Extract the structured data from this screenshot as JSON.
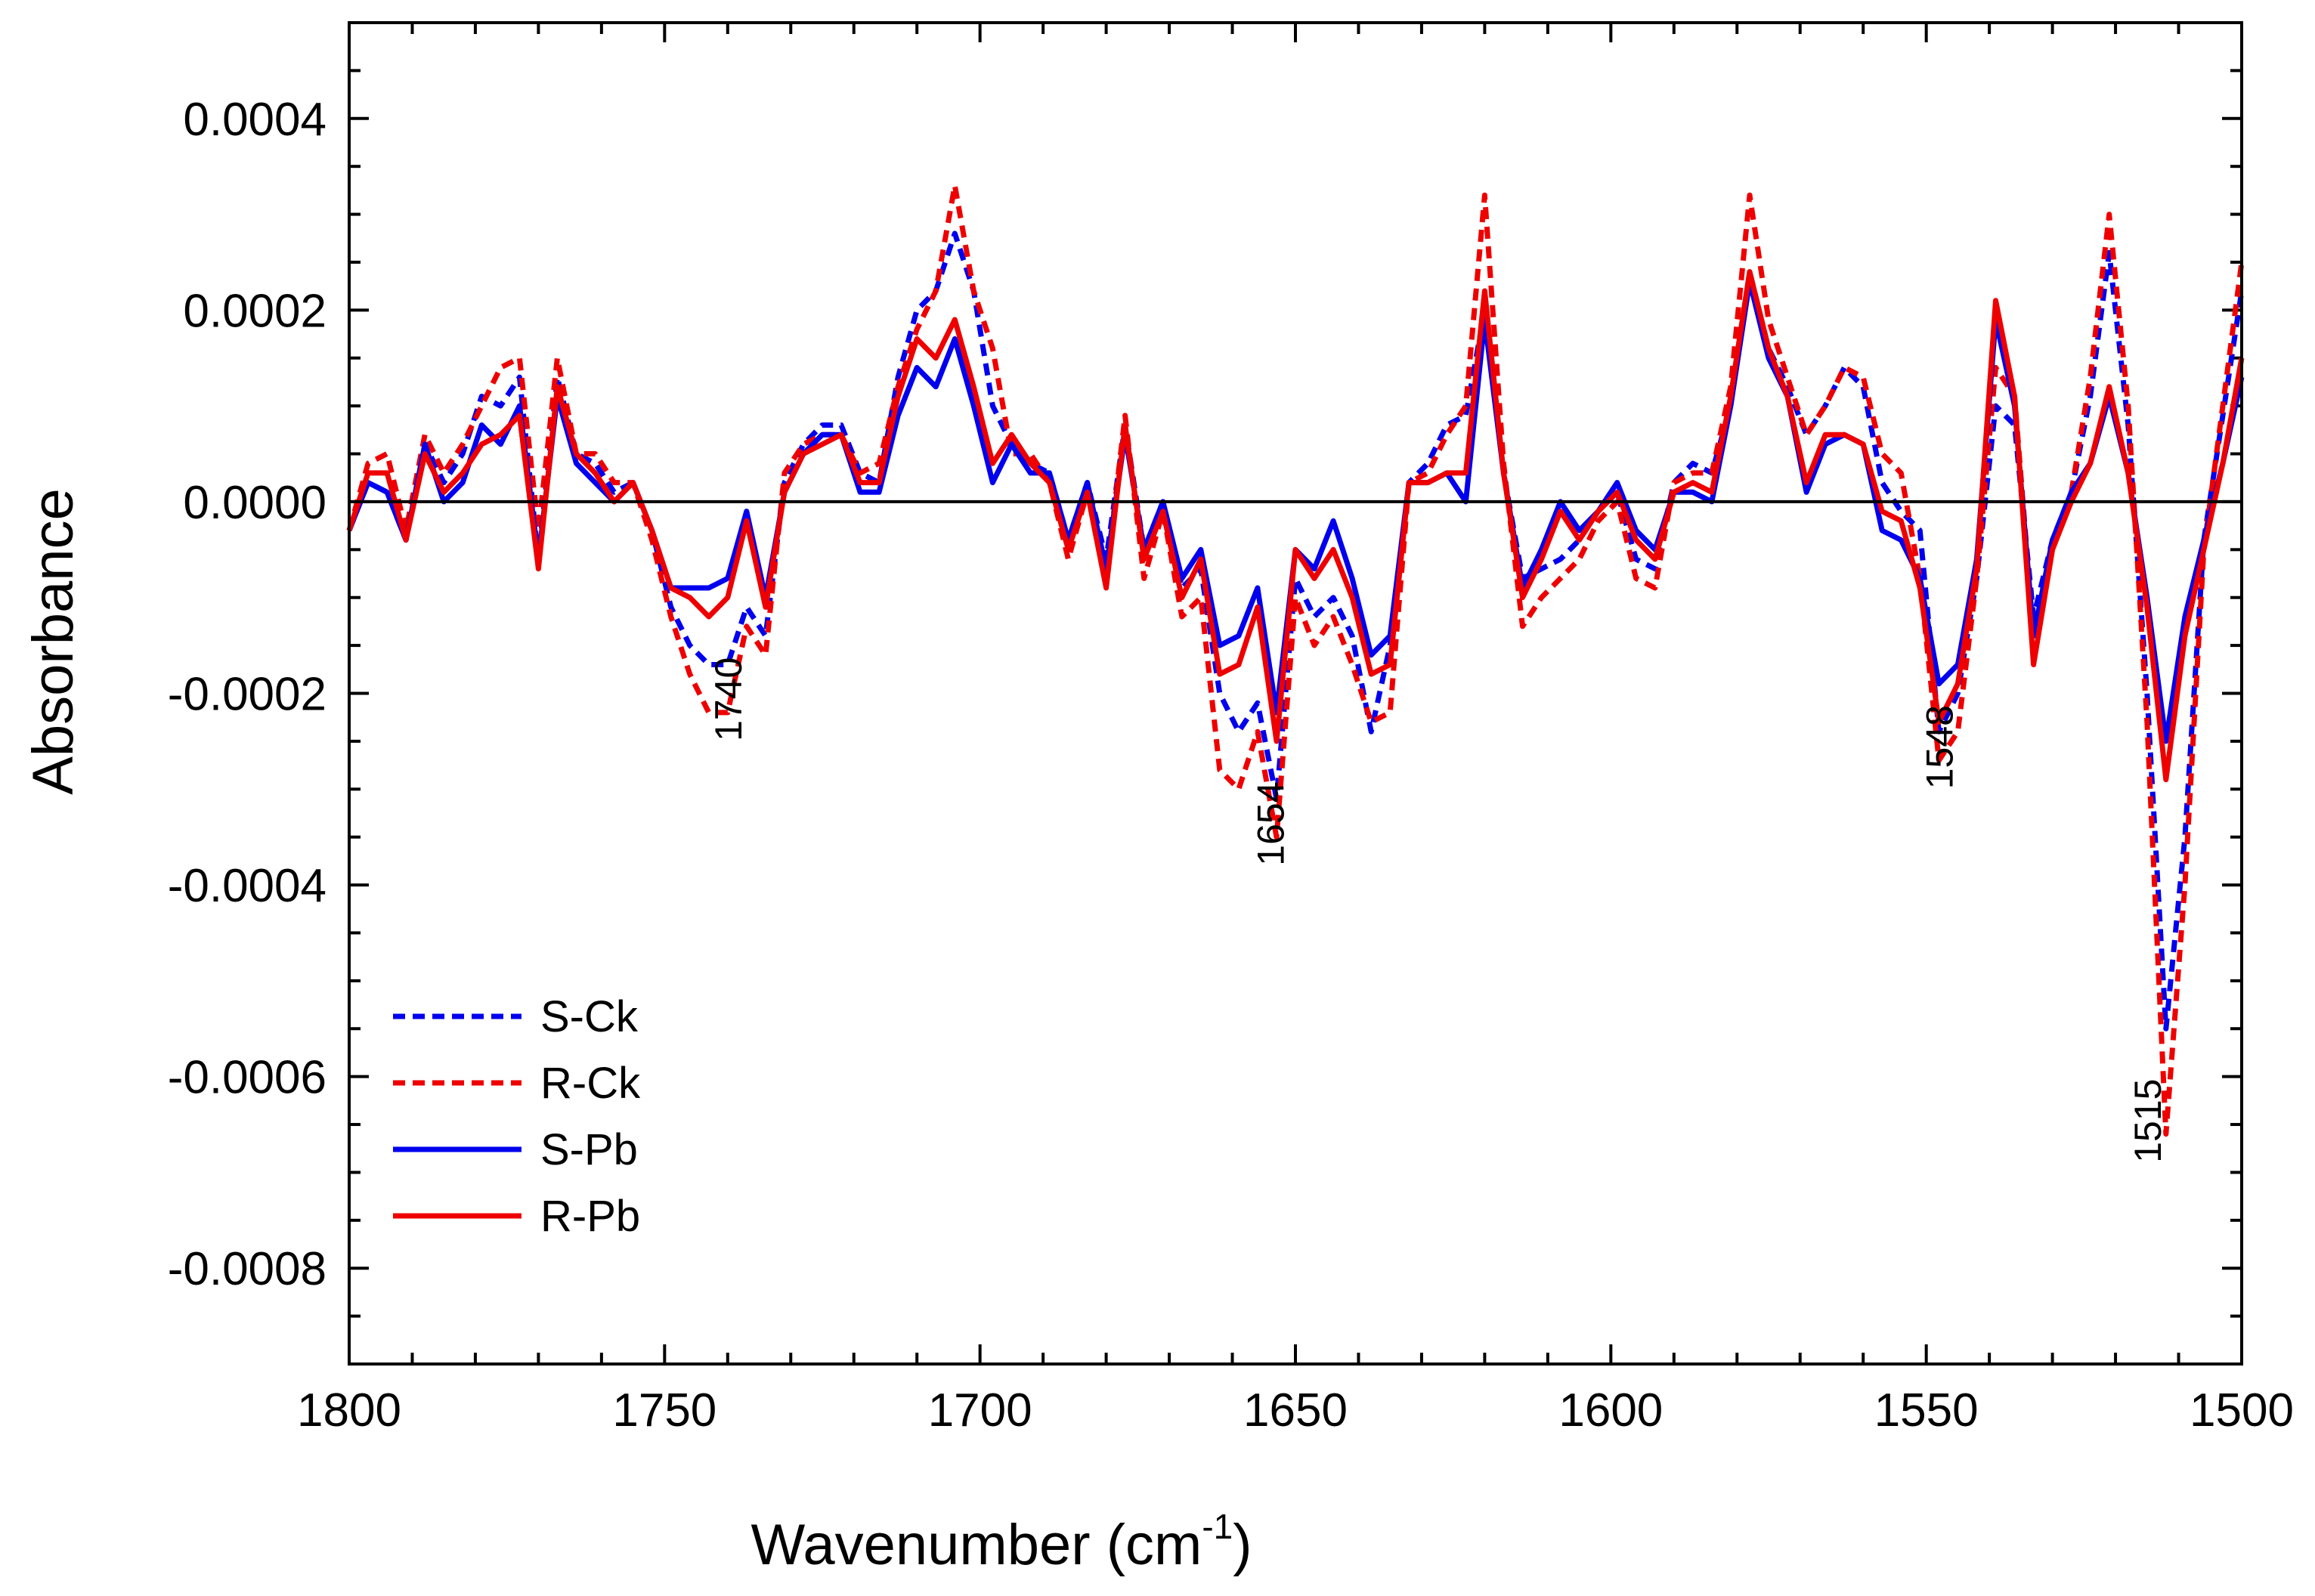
{
  "chart_data": {
    "type": "line",
    "title": "",
    "xlabel": "Wavenumber (cm",
    "xlabel_sup": "-1",
    "xlabel_close": ")",
    "ylabel": "Absorbance",
    "xlim": [
      1800,
      1500
    ],
    "ylim": [
      -0.0009,
      0.0005
    ],
    "x_ticks": [
      1800,
      1750,
      1700,
      1650,
      1600,
      1550,
      1500
    ],
    "x_tick_labels": [
      "1800",
      "1750",
      "1700",
      "1650",
      "1600",
      "1550",
      "1500"
    ],
    "y_ticks": [
      0.0004,
      0.0002,
      0.0,
      -0.0002,
      -0.0004,
      -0.0006,
      -0.0008
    ],
    "y_tick_labels": [
      "0.0004",
      "0.0002",
      "0.0000",
      "-0.0002",
      "-0.0004",
      "-0.0006",
      "-0.0008"
    ],
    "grid": false,
    "legend_position": "bottom-left",
    "colors": {
      "blue": "#0000ee",
      "red": "#ee0000"
    },
    "x": [
      1800,
      1797,
      1794,
      1791,
      1788,
      1785,
      1782,
      1779,
      1776,
      1773,
      1770,
      1767,
      1764,
      1761,
      1758,
      1755,
      1752,
      1749,
      1746,
      1743,
      1740,
      1737,
      1734,
      1731,
      1728,
      1725,
      1722,
      1719,
      1716,
      1713,
      1710,
      1707,
      1704,
      1701,
      1698,
      1695,
      1692,
      1689,
      1686,
      1683,
      1680,
      1677,
      1674,
      1671,
      1668,
      1665,
      1662,
      1659,
      1656,
      1653,
      1650,
      1647,
      1644,
      1641,
      1638,
      1635,
      1632,
      1629,
      1626,
      1623,
      1620,
      1617,
      1614,
      1611,
      1608,
      1605,
      1602,
      1599,
      1596,
      1593,
      1590,
      1587,
      1584,
      1581,
      1578,
      1575,
      1572,
      1569,
      1566,
      1563,
      1560,
      1557,
      1554,
      1551,
      1548,
      1545,
      1542,
      1539,
      1536,
      1533,
      1530,
      1527,
      1524,
      1521,
      1518,
      1515,
      1512,
      1509,
      1506,
      1503,
      1500
    ],
    "series": [
      {
        "name": "S-Ck",
        "style": "dashed",
        "color": "#0000ee",
        "values": [
          -3e-05,
          2e-05,
          1e-05,
          -4e-05,
          6e-05,
          2e-05,
          5e-05,
          0.00011,
          0.0001,
          0.00013,
          -6e-05,
          0.00013,
          5e-05,
          4e-05,
          1e-05,
          2e-05,
          -3e-05,
          -0.00011,
          -0.00015,
          -0.00017,
          -0.00017,
          -0.00011,
          -0.00014,
          2e-05,
          6e-05,
          8e-05,
          8e-05,
          3e-05,
          2e-05,
          0.00013,
          0.0002,
          0.00022,
          0.00028,
          0.00022,
          0.0001,
          6e-05,
          4e-05,
          3e-05,
          -4e-05,
          2e-05,
          -6e-05,
          8e-05,
          -5e-05,
          0.0,
          -9e-05,
          -7e-05,
          -0.0002,
          -0.00024,
          -0.00021,
          -0.00031,
          -8e-05,
          -0.00012,
          -0.0001,
          -0.00014,
          -0.00024,
          -0.00015,
          2e-05,
          4e-05,
          8e-05,
          9e-05,
          0.0002,
          3e-05,
          -8e-05,
          -7e-05,
          -6e-05,
          -4e-05,
          -1e-05,
          1e-05,
          -6e-05,
          -7e-05,
          2e-05,
          4e-05,
          3e-05,
          0.0001,
          0.00024,
          0.00016,
          0.00012,
          7e-05,
          0.0001,
          0.00014,
          0.00012,
          2e-05,
          -1e-05,
          -3e-05,
          -0.00024,
          -0.0002,
          -8e-05,
          0.0001,
          8e-05,
          -0.00012,
          -4e-05,
          1e-05,
          0.00011,
          0.00026,
          8e-05,
          -0.0002,
          -0.00055,
          -0.00035,
          -4e-05,
          9e-05,
          0.00022
        ]
      },
      {
        "name": "R-Ck",
        "style": "dashed",
        "color": "#ee0000",
        "values": [
          -3e-05,
          4e-05,
          5e-05,
          -3e-05,
          7e-05,
          3e-05,
          6e-05,
          0.0001,
          0.00014,
          0.00015,
          -3e-05,
          0.00015,
          5e-05,
          5e-05,
          2e-05,
          2e-05,
          -4e-05,
          -0.00012,
          -0.00018,
          -0.00022,
          -0.00022,
          -0.00013,
          -0.00016,
          3e-05,
          6e-05,
          7e-05,
          7e-05,
          3e-05,
          4e-05,
          0.00012,
          0.00018,
          0.00022,
          0.00033,
          0.00022,
          0.00016,
          5e-05,
          5e-05,
          2e-05,
          -6e-05,
          1e-05,
          -8e-05,
          9e-05,
          -8e-05,
          -1e-05,
          -0.00012,
          -0.0001,
          -0.00028,
          -0.0003,
          -0.00024,
          -0.00035,
          -0.0001,
          -0.00015,
          -0.00012,
          -0.00017,
          -0.00023,
          -0.00022,
          2e-05,
          3e-05,
          7e-05,
          0.0001,
          0.00032,
          4e-05,
          -0.00013,
          -0.0001,
          -8e-05,
          -6e-05,
          -2e-05,
          0.0,
          -8e-05,
          -9e-05,
          2e-05,
          3e-05,
          3e-05,
          0.00012,
          0.00032,
          0.00019,
          0.00013,
          7e-05,
          0.0001,
          0.00014,
          0.00013,
          5e-05,
          3e-05,
          -8e-05,
          -0.00027,
          -0.00024,
          -8e-05,
          0.00014,
          0.00011,
          -0.00014,
          -5e-05,
          1e-05,
          0.00013,
          0.0003,
          0.0001,
          -0.00023,
          -0.00066,
          -0.0004,
          -5e-05,
          0.0001,
          0.00025
        ]
      },
      {
        "name": "S-Pb",
        "style": "solid",
        "color": "#0000ee",
        "values": [
          -3e-05,
          2e-05,
          1e-05,
          -4e-05,
          6e-05,
          0.0,
          2e-05,
          8e-05,
          6e-05,
          0.0001,
          -6e-05,
          0.00011,
          4e-05,
          2e-05,
          0.0,
          2e-05,
          -3e-05,
          -9e-05,
          -9e-05,
          -9e-05,
          -8e-05,
          -1e-05,
          -0.0001,
          1e-05,
          5e-05,
          7e-05,
          7e-05,
          1e-05,
          1e-05,
          9e-05,
          0.00014,
          0.00012,
          0.00017,
          0.0001,
          2e-05,
          6e-05,
          3e-05,
          3e-05,
          -4e-05,
          2e-05,
          -7e-05,
          7e-05,
          -5e-05,
          0.0,
          -8e-05,
          -5e-05,
          -0.00015,
          -0.00014,
          -9e-05,
          -0.00022,
          -5e-05,
          -7e-05,
          -2e-05,
          -8e-05,
          -0.00016,
          -0.00014,
          2e-05,
          2e-05,
          3e-05,
          0.0,
          0.00019,
          3e-05,
          -9e-05,
          -5e-05,
          0.0,
          -3e-05,
          -1e-05,
          2e-05,
          -3e-05,
          -5e-05,
          1e-05,
          1e-05,
          0.0,
          0.0001,
          0.00023,
          0.00015,
          0.00011,
          1e-05,
          6e-05,
          7e-05,
          6e-05,
          -3e-05,
          -4e-05,
          -8e-05,
          -0.00019,
          -0.00017,
          -6e-05,
          0.00019,
          0.0001,
          -0.00014,
          -4e-05,
          1e-05,
          4e-05,
          0.00011,
          3e-05,
          -0.0001,
          -0.00025,
          -0.00012,
          -4e-05,
          4e-05,
          0.00013
        ]
      },
      {
        "name": "R-Pb",
        "style": "solid",
        "color": "#ee0000",
        "values": [
          -3e-05,
          3e-05,
          3e-05,
          -4e-05,
          5e-05,
          1e-05,
          3e-05,
          6e-05,
          7e-05,
          9e-05,
          -7e-05,
          0.00012,
          5e-05,
          3e-05,
          0.0,
          2e-05,
          -3e-05,
          -9e-05,
          -0.0001,
          -0.00012,
          -0.0001,
          -2e-05,
          -0.00011,
          1e-05,
          5e-05,
          6e-05,
          7e-05,
          2e-05,
          2e-05,
          0.00011,
          0.00017,
          0.00015,
          0.00019,
          0.00012,
          4e-05,
          7e-05,
          4e-05,
          2e-05,
          -5e-05,
          1e-05,
          -9e-05,
          8e-05,
          -6e-05,
          -1e-05,
          -0.0001,
          -6e-05,
          -0.00018,
          -0.00017,
          -0.00011,
          -0.00025,
          -5e-05,
          -8e-05,
          -5e-05,
          -0.0001,
          -0.00018,
          -0.00017,
          2e-05,
          2e-05,
          3e-05,
          3e-05,
          0.00022,
          3e-05,
          -0.0001,
          -6e-05,
          -1e-05,
          -4e-05,
          -1e-05,
          1e-05,
          -4e-05,
          -6e-05,
          1e-05,
          2e-05,
          1e-05,
          0.00011,
          0.00024,
          0.00016,
          0.00011,
          2e-05,
          7e-05,
          7e-05,
          6e-05,
          -1e-05,
          -2e-05,
          -9e-05,
          -0.00023,
          -0.00019,
          -7e-05,
          0.00021,
          0.00011,
          -0.00017,
          -5e-05,
          0.0,
          4e-05,
          0.00012,
          3e-05,
          -0.00011,
          -0.00029,
          -0.00014,
          -5e-05,
          4e-05,
          0.00015
        ]
      }
    ],
    "annotations": [
      {
        "text": "1740",
        "x": 1740,
        "y": -0.00025
      },
      {
        "text": "1654",
        "x": 1654,
        "y": -0.00038
      },
      {
        "text": "1548",
        "x": 1548,
        "y": -0.0003
      },
      {
        "text": "1515",
        "x": 1515,
        "y": -0.00069
      }
    ]
  }
}
